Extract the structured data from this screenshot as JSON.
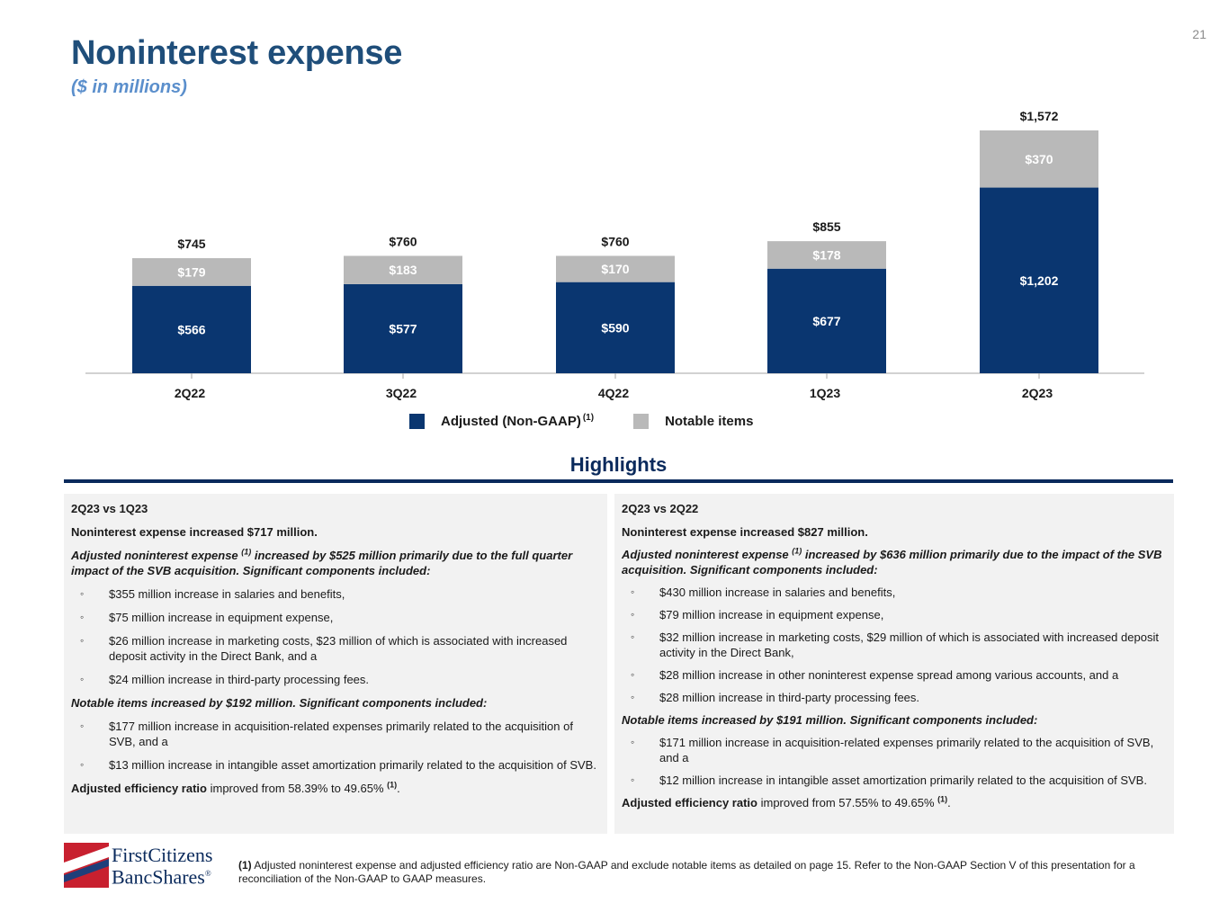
{
  "page_number": "21",
  "title": "Noninterest expense",
  "subtitle": "($ in millions)",
  "chart_data": {
    "type": "bar",
    "stacked": true,
    "categories": [
      "2Q22",
      "3Q22",
      "4Q22",
      "1Q23",
      "2Q23"
    ],
    "series": [
      {
        "name": "Adjusted (Non-GAAP)",
        "color": "#0a3670",
        "values": [
          566,
          577,
          590,
          677,
          1202
        ],
        "labels": [
          "$566",
          "$577",
          "$590",
          "$677",
          "$1,202"
        ]
      },
      {
        "name": "Notable items",
        "color": "#b9b9b9",
        "values": [
          179,
          183,
          170,
          178,
          370
        ],
        "labels": [
          "$179",
          "$183",
          "$170",
          "$178",
          "$370"
        ]
      }
    ],
    "totals": [
      "$745",
      "$760",
      "$760",
      "$855",
      "$1,572"
    ],
    "ylim": [
      0,
      1572
    ]
  },
  "legend": {
    "adjusted_label": "Adjusted (Non-GAAP)",
    "adjusted_sup": "(1)",
    "notable_label": "Notable items"
  },
  "highlights": {
    "title": "Highlights",
    "left": {
      "header": "2Q23 vs 1Q23",
      "p1": "Noninterest expense increased $717 million.",
      "p2a": "Adjusted noninterest expense ",
      "p2sup": "(1)",
      "p2b": " increased by $525 million primarily due to the full quarter impact of the SVB acquisition. Significant components included:",
      "bullets1": [
        "$355 million increase in salaries and benefits,",
        "$75 million increase in equipment expense,",
        "$26 million increase in marketing costs, $23 million of which is associated with increased deposit activity in the Direct Bank, and a",
        "$24 million increase in third-party processing fees."
      ],
      "p3": "Notable items increased by $192 million. Significant components included:",
      "bullets2": [
        "$177 million increase in acquisition-related expenses primarily related to the acquisition of SVB, and a",
        "$13 million increase in intangible asset amortization primarily related to the acquisition of SVB."
      ],
      "eff_bold": "Adjusted efficiency ratio",
      "eff_text": " improved from 58.39% to 49.65% ",
      "eff_sup": "(1)",
      "eff_end": "."
    },
    "right": {
      "header": "2Q23 vs 2Q22",
      "p1": "Noninterest expense increased $827 million.",
      "p2a": "Adjusted noninterest expense ",
      "p2sup": "(1)",
      "p2b": " increased by $636 million primarily due to the impact of the SVB acquisition. Significant components included:",
      "bullets1": [
        "$430 million increase in salaries and benefits,",
        "$79 million increase in equipment expense,",
        "$32 million increase in marketing costs, $29 million of which is associated with  increased deposit activity in the Direct Bank,",
        "$28 million increase in other noninterest expense spread among various accounts, and a",
        "$28 million increase in third-party processing fees."
      ],
      "p3": "Notable items increased by $191 million. Significant components included:",
      "bullets2": [
        "$171 million increase in acquisition-related expenses primarily related to the acquisition of SVB, and a",
        "$12 million increase in intangible asset amortization primarily related to the acquisition of SVB."
      ],
      "eff_bold": "Adjusted efficiency ratio",
      "eff_text": " improved from 57.55% to 49.65% ",
      "eff_sup": "(1)",
      "eff_end": "."
    }
  },
  "logo": {
    "line1": "FirstCitizens",
    "line2": "BancShares",
    "mark": "®"
  },
  "footnote": {
    "num": "(1)",
    "text": " Adjusted noninterest expense and adjusted efficiency ratio are Non-GAAP and exclude notable items as detailed on page 15. Refer to the Non-GAAP Section V of this presentation for a reconciliation of the Non-GAAP to GAAP measures."
  }
}
